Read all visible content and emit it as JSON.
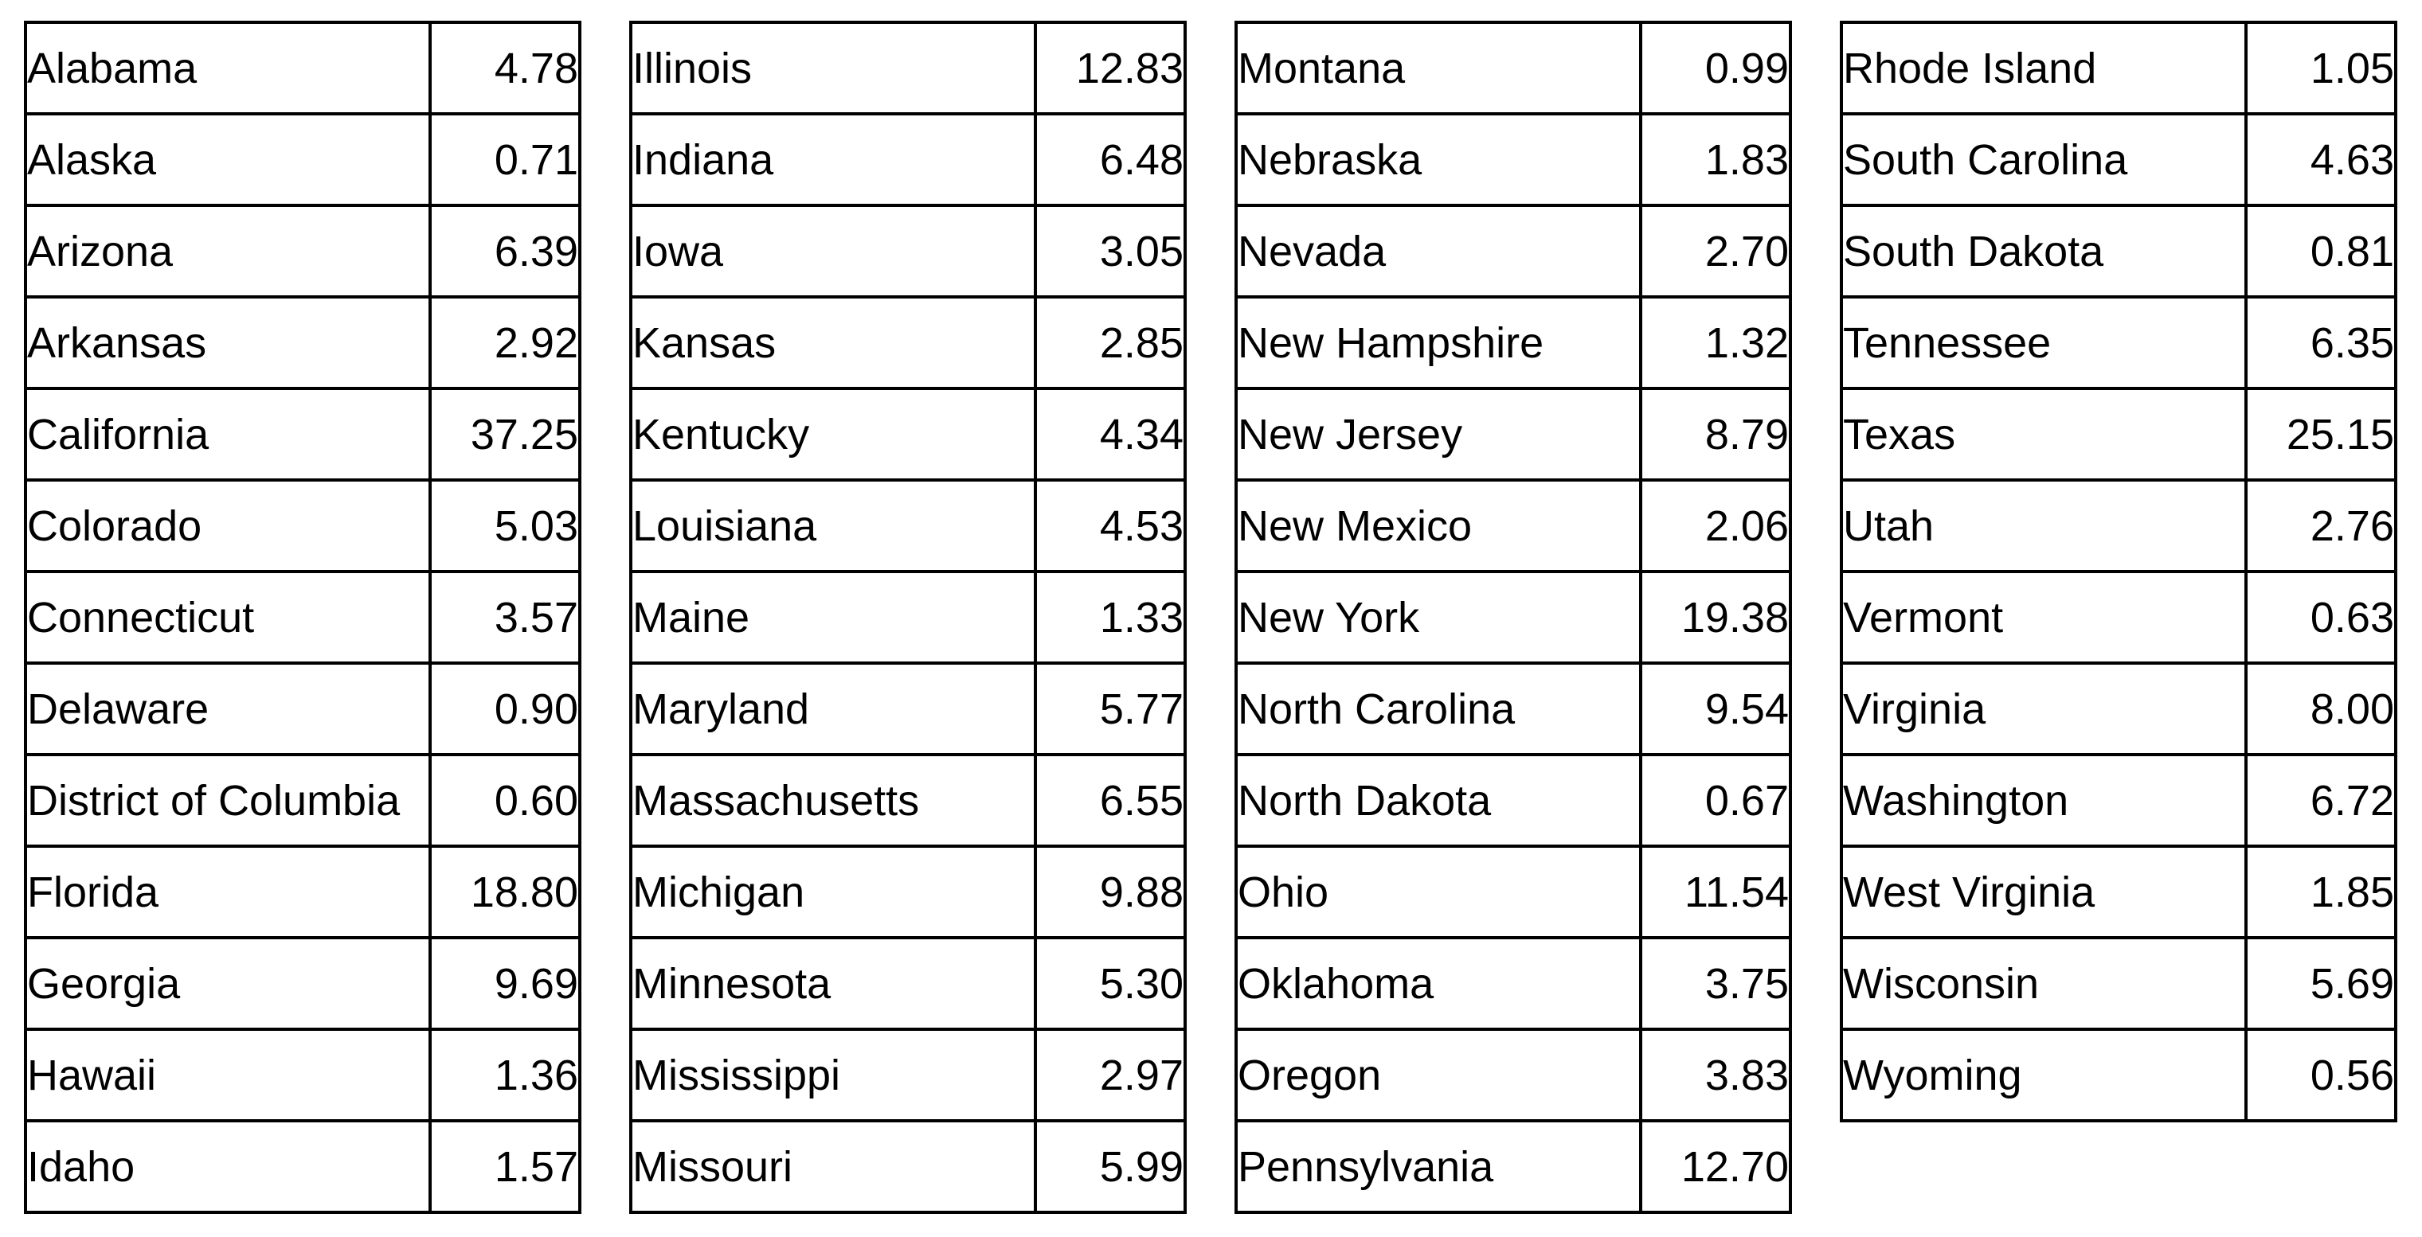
{
  "tables": [
    {
      "name": "states-alabama-to-idaho",
      "rows": [
        {
          "state": "Alabama",
          "value": "4.78"
        },
        {
          "state": "Alaska",
          "value": "0.71"
        },
        {
          "state": "Arizona",
          "value": "6.39"
        },
        {
          "state": "Arkansas",
          "value": "2.92"
        },
        {
          "state": "California",
          "value": "37.25"
        },
        {
          "state": "Colorado",
          "value": "5.03"
        },
        {
          "state": "Connecticut",
          "value": "3.57"
        },
        {
          "state": "Delaware",
          "value": "0.90"
        },
        {
          "state": "District of Columbia",
          "value": "0.60"
        },
        {
          "state": "Florida",
          "value": "18.80"
        },
        {
          "state": "Georgia",
          "value": "9.69"
        },
        {
          "state": "Hawaii",
          "value": "1.36"
        },
        {
          "state": "Idaho",
          "value": "1.57"
        }
      ]
    },
    {
      "name": "states-illinois-to-missouri",
      "rows": [
        {
          "state": "Illinois",
          "value": "12.83"
        },
        {
          "state": "Indiana",
          "value": "6.48"
        },
        {
          "state": "Iowa",
          "value": "3.05"
        },
        {
          "state": "Kansas",
          "value": "2.85"
        },
        {
          "state": "Kentucky",
          "value": "4.34"
        },
        {
          "state": "Louisiana",
          "value": "4.53"
        },
        {
          "state": "Maine",
          "value": "1.33"
        },
        {
          "state": "Maryland",
          "value": "5.77"
        },
        {
          "state": "Massachusetts",
          "value": "6.55"
        },
        {
          "state": "Michigan",
          "value": "9.88"
        },
        {
          "state": "Minnesota",
          "value": "5.30"
        },
        {
          "state": "Mississippi",
          "value": "2.97"
        },
        {
          "state": "Missouri",
          "value": "5.99"
        }
      ]
    },
    {
      "name": "states-montana-to-pennsylvania",
      "rows": [
        {
          "state": "Montana",
          "value": "0.99"
        },
        {
          "state": "Nebraska",
          "value": "1.83"
        },
        {
          "state": "Nevada",
          "value": "2.70"
        },
        {
          "state": "New Hampshire",
          "value": "1.32"
        },
        {
          "state": "New Jersey",
          "value": "8.79"
        },
        {
          "state": "New Mexico",
          "value": "2.06"
        },
        {
          "state": "New York",
          "value": "19.38"
        },
        {
          "state": "North Carolina",
          "value": "9.54"
        },
        {
          "state": "North Dakota",
          "value": "0.67"
        },
        {
          "state": "Ohio",
          "value": "11.54"
        },
        {
          "state": "Oklahoma",
          "value": "3.75"
        },
        {
          "state": "Oregon",
          "value": "3.83"
        },
        {
          "state": "Pennsylvania",
          "value": "12.70"
        }
      ]
    },
    {
      "name": "states-rhode-island-to-wyoming",
      "rows": [
        {
          "state": "Rhode Island",
          "value": "1.05"
        },
        {
          "state": "South Carolina",
          "value": "4.63"
        },
        {
          "state": "South Dakota",
          "value": "0.81"
        },
        {
          "state": "Tennessee",
          "value": "6.35"
        },
        {
          "state": "Texas",
          "value": "25.15"
        },
        {
          "state": "Utah",
          "value": "2.76"
        },
        {
          "state": "Vermont",
          "value": "0.63"
        },
        {
          "state": "Virginia",
          "value": "8.00"
        },
        {
          "state": "Washington",
          "value": "6.72"
        },
        {
          "state": "West Virginia",
          "value": "1.85"
        },
        {
          "state": "Wisconsin",
          "value": "5.69"
        },
        {
          "state": "Wyoming",
          "value": "0.56"
        }
      ]
    }
  ]
}
